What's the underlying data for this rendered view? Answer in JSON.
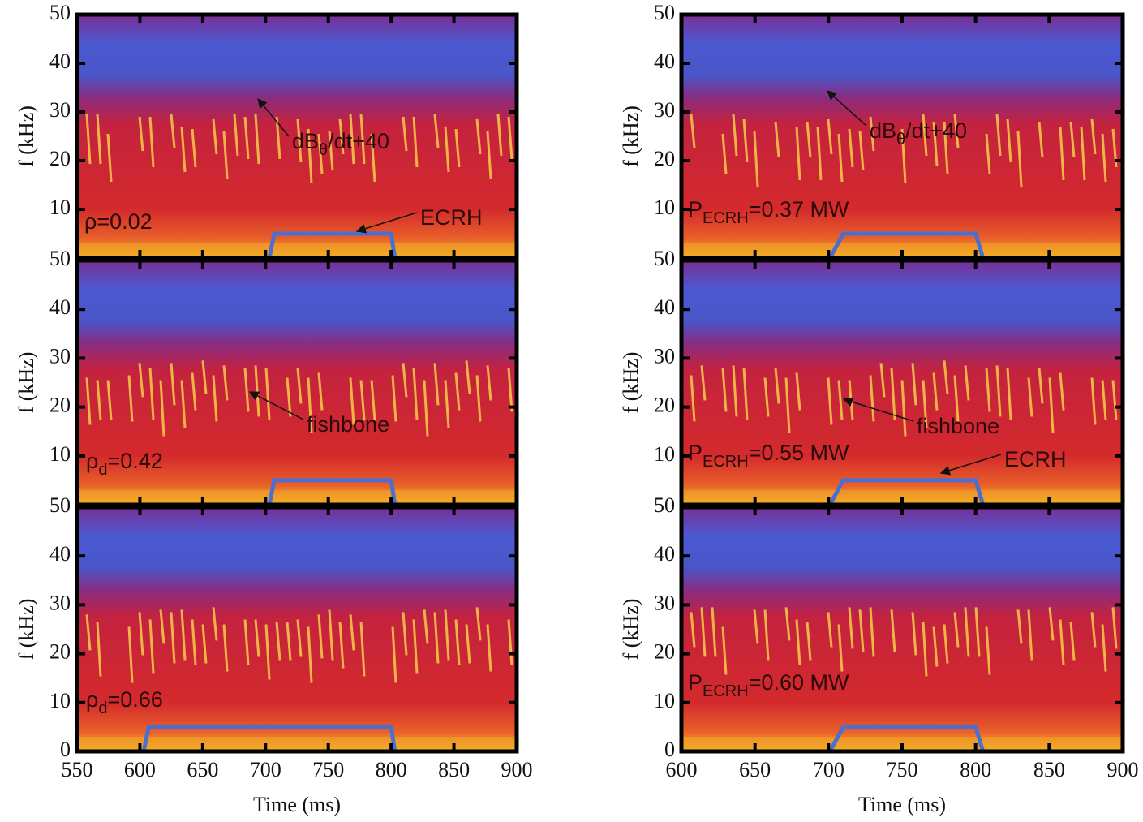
{
  "chart_data": [
    {
      "type": "line",
      "ylabel": "f (kHz)",
      "xlim": [
        550,
        900
      ],
      "xticks": [
        550,
        600,
        650,
        700,
        750,
        800,
        850,
        900
      ],
      "x_tick_labels": false,
      "ylim": [
        0,
        50
      ],
      "yticks": [
        10,
        20,
        30,
        40,
        50
      ],
      "series": [
        {
          "color": "#4a6fd0",
          "x": [
            703,
            707,
            800,
            803
          ],
          "values": [
            0,
            5,
            5,
            0
          ]
        }
      ],
      "annotations": [
        {
          "text": "dB",
          "sub": "θ",
          "after": "/dt+40"
        },
        {
          "text": "ρ=0.02"
        },
        {
          "text": "ECRH"
        }
      ]
    },
    {
      "type": "line",
      "ylabel": "f (kHz)",
      "xlim": [
        550,
        900
      ],
      "xticks": [
        550,
        600,
        650,
        700,
        750,
        800,
        850,
        900
      ],
      "x_tick_labels": false,
      "ylim": [
        0,
        50
      ],
      "yticks": [
        10,
        20,
        30,
        40,
        50
      ],
      "series": [
        {
          "color": "#4a6fd0",
          "x": [
            703,
            707,
            800,
            803
          ],
          "values": [
            0,
            5,
            5,
            0
          ]
        }
      ],
      "annotations": [
        {
          "text": "fishbone"
        },
        {
          "text": "ρ",
          "sub": "d",
          "after": "=0.42"
        }
      ]
    },
    {
      "type": "line",
      "ylabel": "f (kHz)",
      "xlabel": "Time (ms)",
      "xlim": [
        550,
        900
      ],
      "xticks": [
        550,
        600,
        650,
        700,
        750,
        800,
        850,
        900
      ],
      "x_tick_labels": true,
      "ylim": [
        0,
        50
      ],
      "yticks": [
        0,
        10,
        20,
        30,
        40,
        50
      ],
      "series": [
        {
          "color": "#4a6fd0",
          "x": [
            603,
            607,
            800,
            803
          ],
          "values": [
            0,
            5,
            5,
            0
          ]
        }
      ],
      "annotations": [
        {
          "text": "ρ",
          "sub": "d",
          "after": "=0.66"
        }
      ]
    },
    {
      "type": "line",
      "ylabel": "f (kHz)",
      "xlim": [
        600,
        900
      ],
      "xticks": [
        600,
        650,
        700,
        750,
        800,
        850,
        900
      ],
      "x_tick_labels": false,
      "ylim": [
        0,
        50
      ],
      "yticks": [
        10,
        20,
        30,
        40,
        50
      ],
      "series": [
        {
          "color": "#4a6fd0",
          "x": [
            701,
            710,
            800,
            805
          ],
          "values": [
            0,
            5,
            5,
            0
          ]
        }
      ],
      "annotations": [
        {
          "text": "dB",
          "sub": "θ",
          "after": "/dt+40"
        },
        {
          "text": "P",
          "sub": "ECRH",
          "after": "=0.37 MW"
        }
      ]
    },
    {
      "type": "line",
      "ylabel": "f (kHz)",
      "xlim": [
        600,
        900
      ],
      "xticks": [
        600,
        650,
        700,
        750,
        800,
        850,
        900
      ],
      "x_tick_labels": false,
      "ylim": [
        0,
        50
      ],
      "yticks": [
        10,
        20,
        30,
        40,
        50
      ],
      "series": [
        {
          "color": "#4a6fd0",
          "x": [
            701,
            710,
            800,
            805
          ],
          "values": [
            0,
            5,
            5,
            0
          ]
        }
      ],
      "annotations": [
        {
          "text": "fishbone"
        },
        {
          "text": "P",
          "sub": "ECRH",
          "after": "=0.55 MW"
        },
        {
          "text": "ECRH"
        }
      ]
    },
    {
      "type": "line",
      "ylabel": "f (kHz)",
      "xlabel": "Time (ms)",
      "xlim": [
        600,
        900
      ],
      "xticks": [
        600,
        650,
        700,
        750,
        800,
        850,
        900
      ],
      "x_tick_labels": true,
      "ylim": [
        0,
        50
      ],
      "yticks": [
        0,
        10,
        20,
        30,
        40,
        50
      ],
      "series": [
        {
          "color": "#4a6fd0",
          "x": [
            701,
            710,
            800,
            805
          ],
          "values": [
            0,
            5,
            5,
            0
          ]
        }
      ],
      "annotations": [
        {
          "text": "P",
          "sub": "ECRH",
          "after": "=0.60 MW"
        }
      ]
    }
  ]
}
